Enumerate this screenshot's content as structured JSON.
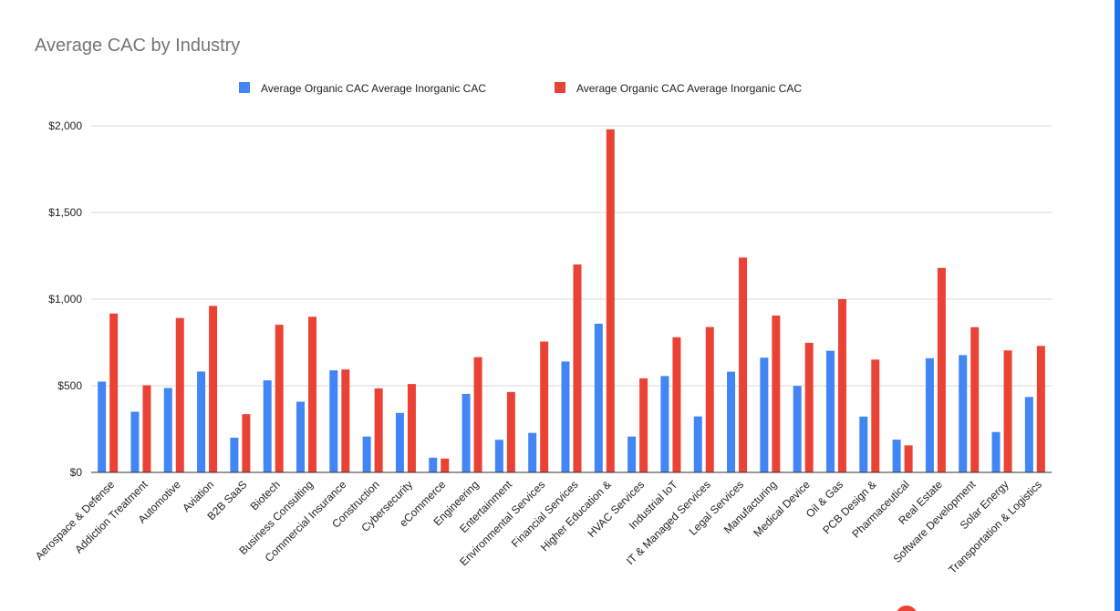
{
  "chart_data": {
    "type": "bar",
    "title": "Average CAC by Industry",
    "xlabel": "",
    "ylabel": "",
    "ylim": [
      0,
      2000
    ],
    "yticks": [
      0,
      500,
      1000,
      1500,
      2000
    ],
    "ytick_labels": [
      "$0",
      "$500",
      "$1,000",
      "$1,500",
      "$2,000"
    ],
    "grid": true,
    "legend_position": "top-center",
    "categories": [
      "Aerospace & Defense",
      "Addiction Treatment",
      "Automotive",
      "Aviation",
      "B2B SaaS",
      "Biotech",
      "Business Consulting",
      "Commercial Insurance",
      "Construction",
      "Cybersecurity",
      "eCommerce",
      "Engineering",
      "Entertainment",
      "Environmental Services",
      "Financial Services",
      "Higher Education &",
      "HVAC Services",
      "Industrial IoT",
      "IT & Managed Services",
      "Legal Services",
      "Manufacturing",
      "Medical Device",
      "Oil & Gas",
      "PCB Design &",
      "Pharmaceutical",
      "Real Estate",
      "Software Development",
      "Solar Energy",
      "Transportation & Logistics"
    ],
    "series": [
      {
        "name": "Average Organic CAC Average Inorganic CAC",
        "color": "#4285f4",
        "values": [
          524,
          350,
          487,
          582,
          200,
          531,
          408,
          589,
          207,
          343,
          85,
          453,
          188,
          228,
          640,
          858,
          207,
          556,
          323,
          581,
          662,
          499,
          702,
          322,
          189,
          659,
          677,
          233,
          435
        ]
      },
      {
        "name": "Average Organic CAC Average Inorganic CAC",
        "color": "#ea4335",
        "values": [
          917,
          503,
          891,
          961,
          336,
          852,
          898,
          594,
          485,
          510,
          80,
          665,
          464,
          755,
          1200,
          1980,
          543,
          780,
          839,
          1240,
          905,
          748,
          1000,
          651,
          156,
          1180,
          838,
          704,
          730
        ]
      }
    ]
  }
}
